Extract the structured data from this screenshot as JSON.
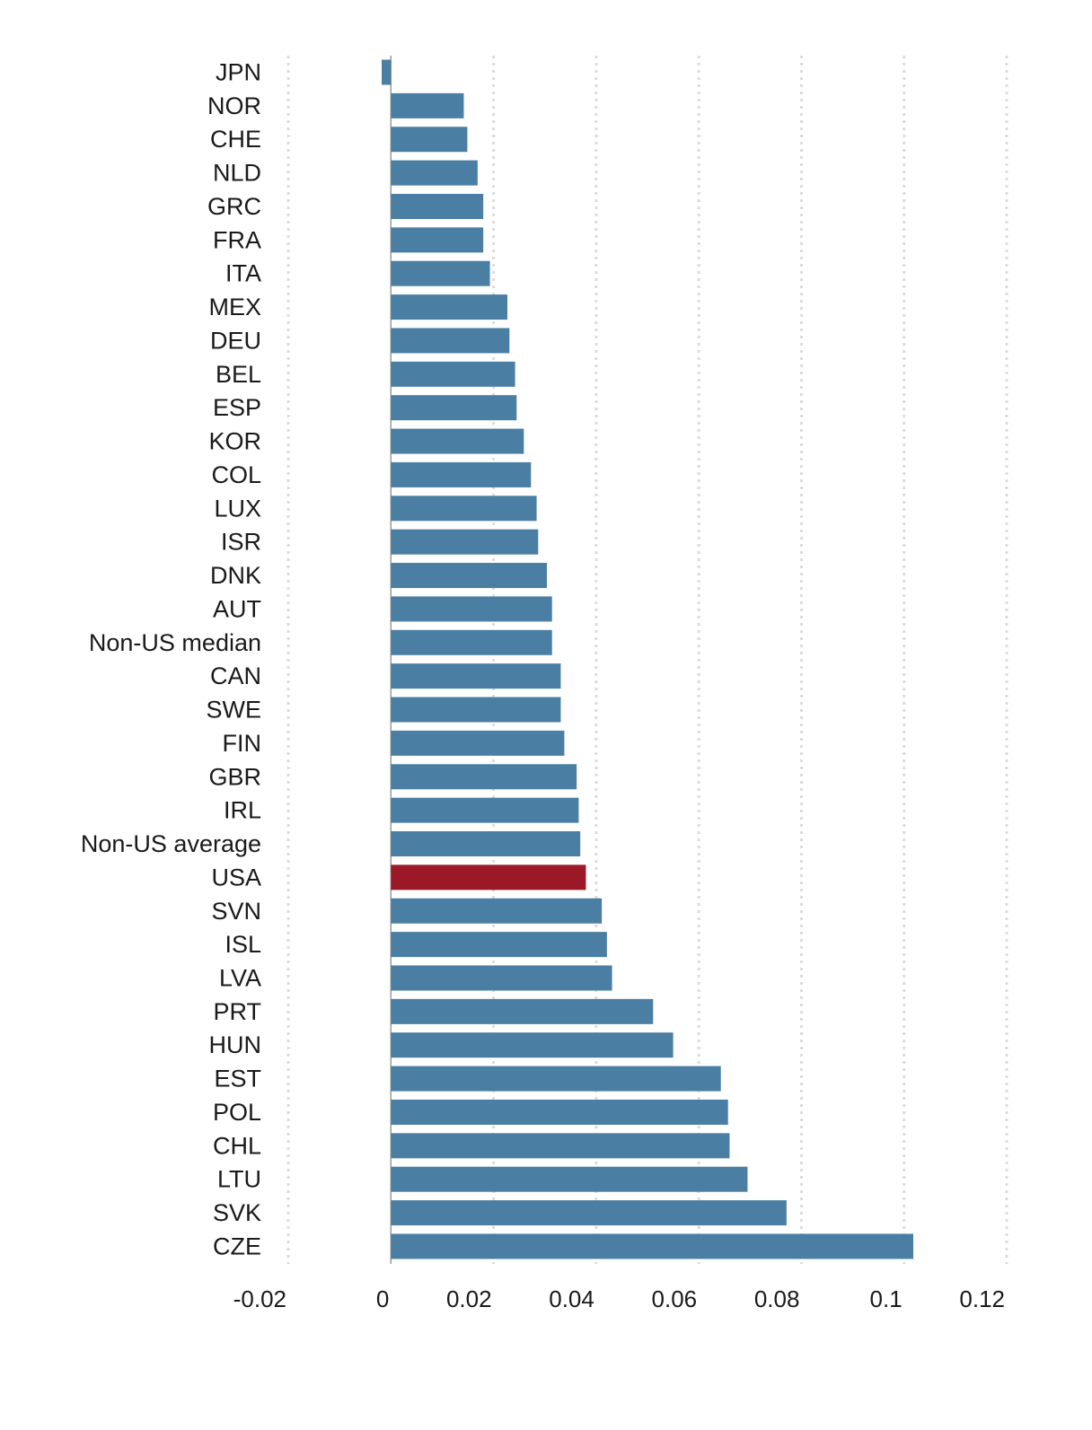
{
  "chart_data": {
    "type": "bar",
    "orientation": "horizontal",
    "categories": [
      "JPN",
      "NOR",
      "CHE",
      "NLD",
      "GRC",
      "FRA",
      "ITA",
      "MEX",
      "DEU",
      "BEL",
      "ESP",
      "KOR",
      "COL",
      "LUX",
      "ISR",
      "DNK",
      "AUT",
      "Non-US median",
      "CAN",
      "SWE",
      "FIN",
      "GBR",
      "IRL",
      "Non-US average",
      "USA",
      "SVN",
      "ISL",
      "LVA",
      "PRT",
      "HUN",
      "EST",
      "POL",
      "CHL",
      "LTU",
      "SVK",
      "CZE"
    ],
    "values": [
      -0.0018,
      0.0142,
      0.0149,
      0.0169,
      0.018,
      0.018,
      0.0193,
      0.0227,
      0.0231,
      0.0242,
      0.0245,
      0.0259,
      0.0273,
      0.0284,
      0.0287,
      0.0304,
      0.0314,
      0.0314,
      0.0331,
      0.0331,
      0.0338,
      0.0362,
      0.0366,
      0.0369,
      0.038,
      0.0411,
      0.0421,
      0.0431,
      0.0511,
      0.055,
      0.0643,
      0.0657,
      0.066,
      0.0695,
      0.0771,
      0.1018
    ],
    "highlight": "USA",
    "xlim": [
      -0.02,
      0.12
    ],
    "xticks": [
      -0.02,
      0,
      0.02,
      0.04,
      0.06,
      0.08,
      0.1,
      0.12
    ],
    "xtick_labels": [
      "-0.02",
      "0",
      "0.02",
      "0.04",
      "0.06",
      "0.08",
      "0.1",
      "0.12"
    ],
    "grid": true,
    "colors": {
      "bar": "#4a7fa3",
      "highlight": "#9b1826"
    },
    "title": "",
    "xlabel": "",
    "ylabel": ""
  }
}
